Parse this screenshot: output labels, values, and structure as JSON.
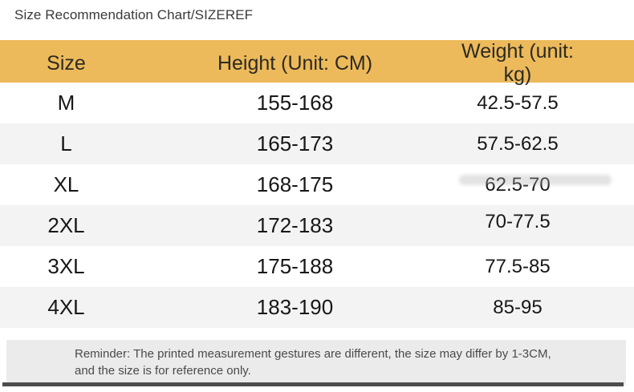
{
  "chart_data": {
    "type": "table",
    "title": "Size Recommendation Chart/SIZEREF",
    "columns": [
      "Size",
      "Height (Unit: CM)",
      "Weight (unit: kg)"
    ],
    "rows": [
      [
        "M",
        "155-168",
        "42.5-57.5"
      ],
      [
        "L",
        "165-173",
        "57.5-62.5"
      ],
      [
        "XL",
        "168-175",
        "62.5-70"
      ],
      [
        "2XL",
        "172-183",
        "70-77.5"
      ],
      [
        "3XL",
        "175-188",
        "77.5-85"
      ],
      [
        "4XL",
        "183-190",
        "85-95"
      ]
    ],
    "note": "Reminder: The printed measurement gestures are different, the size may differ by 1-3CM, and the size is for reference only."
  },
  "colors": {
    "header_bg": "#ECBA5B",
    "alt_row_bg": "#F3F3F3",
    "footer_bg": "#EBEBEB",
    "bottom_bar": "#4D4D4D"
  }
}
